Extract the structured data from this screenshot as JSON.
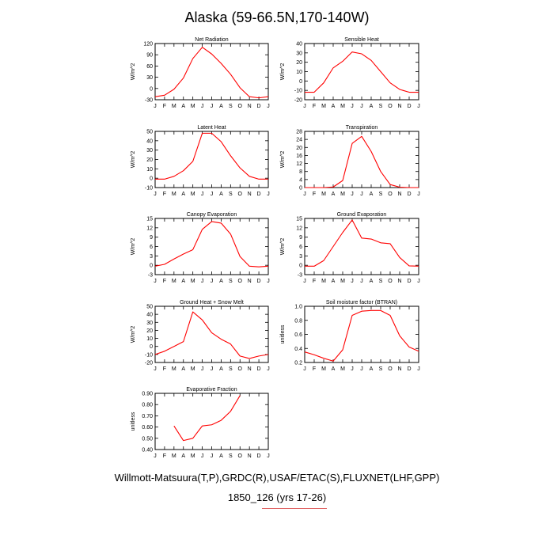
{
  "page": {
    "title": "Alaska (59-66.5N,170-140W)",
    "footer_line1": "Willmott-Matsuura(T,P),GRDC(R),USAF/ETAC(S),FLUXNET(LHF,GPP)",
    "footer_line2": "1850_126 (yrs 17-26)"
  },
  "colors": {
    "line": "#ff0000",
    "axis": "#000000",
    "footer_underline": "#e06666"
  },
  "months": [
    "J",
    "F",
    "M",
    "A",
    "M",
    "J",
    "J",
    "A",
    "S",
    "O",
    "N",
    "D",
    "J"
  ],
  "chart_data": [
    {
      "type": "line",
      "title": "Net Radiation",
      "ylabel": "W/m^2",
      "ylim": [
        -30,
        120
      ],
      "yticks": [
        -30,
        0,
        30,
        60,
        90,
        120
      ],
      "y_tick_labels": [
        "-30",
        "0",
        "30",
        "60",
        "90",
        "120"
      ],
      "x": [
        0,
        1,
        2,
        3,
        4,
        5,
        6,
        7,
        8,
        9,
        10,
        11,
        12
      ],
      "series": [
        {
          "values": [
            -22,
            -18,
            -2,
            28,
            80,
            110,
            92,
            67,
            38,
            2,
            -22,
            -25,
            -22
          ]
        }
      ]
    },
    {
      "type": "line",
      "title": "Sensible Heat",
      "ylabel": "W/m^2",
      "ylim": [
        -20,
        40
      ],
      "yticks": [
        -20,
        -10,
        0,
        10,
        20,
        30,
        40
      ],
      "y_tick_labels": [
        "-20",
        "-10",
        "0",
        "10",
        "20",
        "30",
        "40"
      ],
      "x": [
        0,
        1,
        2,
        3,
        4,
        5,
        6,
        7,
        8,
        9,
        10,
        11,
        12
      ],
      "series": [
        {
          "values": [
            -12,
            -12,
            -2,
            14,
            21,
            31,
            29,
            22,
            10,
            -2,
            -9,
            -12,
            -12
          ]
        }
      ]
    },
    {
      "type": "line",
      "title": "Latent Heat",
      "ylabel": "W/m^2",
      "ylim": [
        -10,
        50
      ],
      "yticks": [
        -10,
        0,
        10,
        20,
        30,
        40,
        50
      ],
      "y_tick_labels": [
        "-10",
        "0",
        "10",
        "20",
        "30",
        "40",
        "50"
      ],
      "x": [
        0,
        1,
        2,
        3,
        4,
        5,
        6,
        7,
        8,
        9,
        10,
        11,
        12
      ],
      "series": [
        {
          "values": [
            -1,
            -1,
            2,
            8,
            18,
            48,
            48,
            39,
            24,
            11,
            2,
            -1,
            -1
          ]
        }
      ]
    },
    {
      "type": "line",
      "title": "Transpiration",
      "ylabel": "W/m^2",
      "ylim": [
        0,
        28
      ],
      "yticks": [
        0,
        4,
        8,
        12,
        16,
        20,
        24,
        28
      ],
      "y_tick_labels": [
        "0",
        "4",
        "8",
        "12",
        "16",
        "20",
        "24",
        "28"
      ],
      "x": [
        0,
        1,
        2,
        3,
        4,
        5,
        6,
        7,
        8,
        9,
        10,
        11,
        12
      ],
      "series": [
        {
          "values": [
            0,
            0,
            0,
            0.3,
            3.5,
            22,
            25.5,
            18,
            8,
            1.5,
            0.2,
            0,
            0
          ]
        }
      ]
    },
    {
      "type": "line",
      "title": "Canopy Evaporation",
      "ylabel": "W/m^2",
      "ylim": [
        -3,
        15
      ],
      "yticks": [
        -3,
        0,
        3,
        6,
        9,
        12,
        15
      ],
      "y_tick_labels": [
        "-3",
        "0",
        "3",
        "6",
        "9",
        "12",
        "15"
      ],
      "x": [
        0,
        1,
        2,
        3,
        4,
        5,
        6,
        7,
        8,
        9,
        10,
        11,
        12
      ],
      "series": [
        {
          "values": [
            -0.3,
            0.3,
            2,
            3.6,
            5,
            11.5,
            14,
            13.5,
            10,
            2.8,
            -0.3,
            -0.5,
            -0.3
          ]
        }
      ]
    },
    {
      "type": "line",
      "title": "Ground Evaporation",
      "ylabel": "W/m^2",
      "ylim": [
        -3,
        15
      ],
      "yticks": [
        -3,
        0,
        3,
        6,
        9,
        12,
        15
      ],
      "y_tick_labels": [
        "-3",
        "0",
        "3",
        "6",
        "9",
        "12",
        "15"
      ],
      "x": [
        0,
        1,
        2,
        3,
        4,
        5,
        6,
        7,
        8,
        9,
        10,
        11,
        12
      ],
      "series": [
        {
          "values": [
            -0.3,
            -0.3,
            1.5,
            6,
            10.5,
            14.5,
            8.7,
            8.4,
            7.2,
            6.9,
            2.5,
            -0.2,
            -0.3
          ]
        }
      ]
    },
    {
      "type": "line",
      "title": "Ground Heat + Snow Melt",
      "ylabel": "W/m^2",
      "ylim": [
        -20,
        50
      ],
      "yticks": [
        -20,
        -10,
        0,
        10,
        20,
        30,
        40,
        50
      ],
      "y_tick_labels": [
        "-20",
        "-10",
        "0",
        "10",
        "20",
        "30",
        "40",
        "50"
      ],
      "x": [
        0,
        1,
        2,
        3,
        4,
        5,
        6,
        7,
        8,
        9,
        10,
        11,
        12
      ],
      "series": [
        {
          "values": [
            -10,
            -6,
            0,
            6,
            43,
            33,
            17,
            9,
            3,
            -12,
            -15,
            -12,
            -10
          ]
        }
      ]
    },
    {
      "type": "line",
      "title": "Soil moisture factor (BTRAN)",
      "ylabel": "unitless",
      "ylim": [
        0.2,
        1.0
      ],
      "yticks": [
        0.2,
        0.4,
        0.6,
        0.8,
        1.0
      ],
      "y_tick_labels": [
        "0.2",
        "0.4",
        "0.6",
        "0.8",
        "1.0"
      ],
      "x": [
        0,
        1,
        2,
        3,
        4,
        5,
        6,
        7,
        8,
        9,
        10,
        11,
        12
      ],
      "series": [
        {
          "values": [
            0.35,
            0.31,
            0.26,
            0.22,
            0.38,
            0.87,
            0.93,
            0.94,
            0.94,
            0.87,
            0.58,
            0.42,
            0.36
          ]
        }
      ]
    },
    {
      "type": "line",
      "title": "Evaporative Fraction",
      "ylabel": "unitless",
      "ylim": [
        0.4,
        0.9
      ],
      "yticks": [
        0.4,
        0.5,
        0.6,
        0.7,
        0.8,
        0.9
      ],
      "y_tick_labels": [
        "0.40",
        "0.50",
        "0.60",
        "0.70",
        "0.80",
        "0.90"
      ],
      "x": [
        2,
        3,
        4,
        5,
        6,
        7,
        8,
        9
      ],
      "series": [
        {
          "values": [
            0.61,
            0.48,
            0.5,
            0.61,
            0.62,
            0.66,
            0.74,
            0.88
          ]
        }
      ]
    }
  ]
}
